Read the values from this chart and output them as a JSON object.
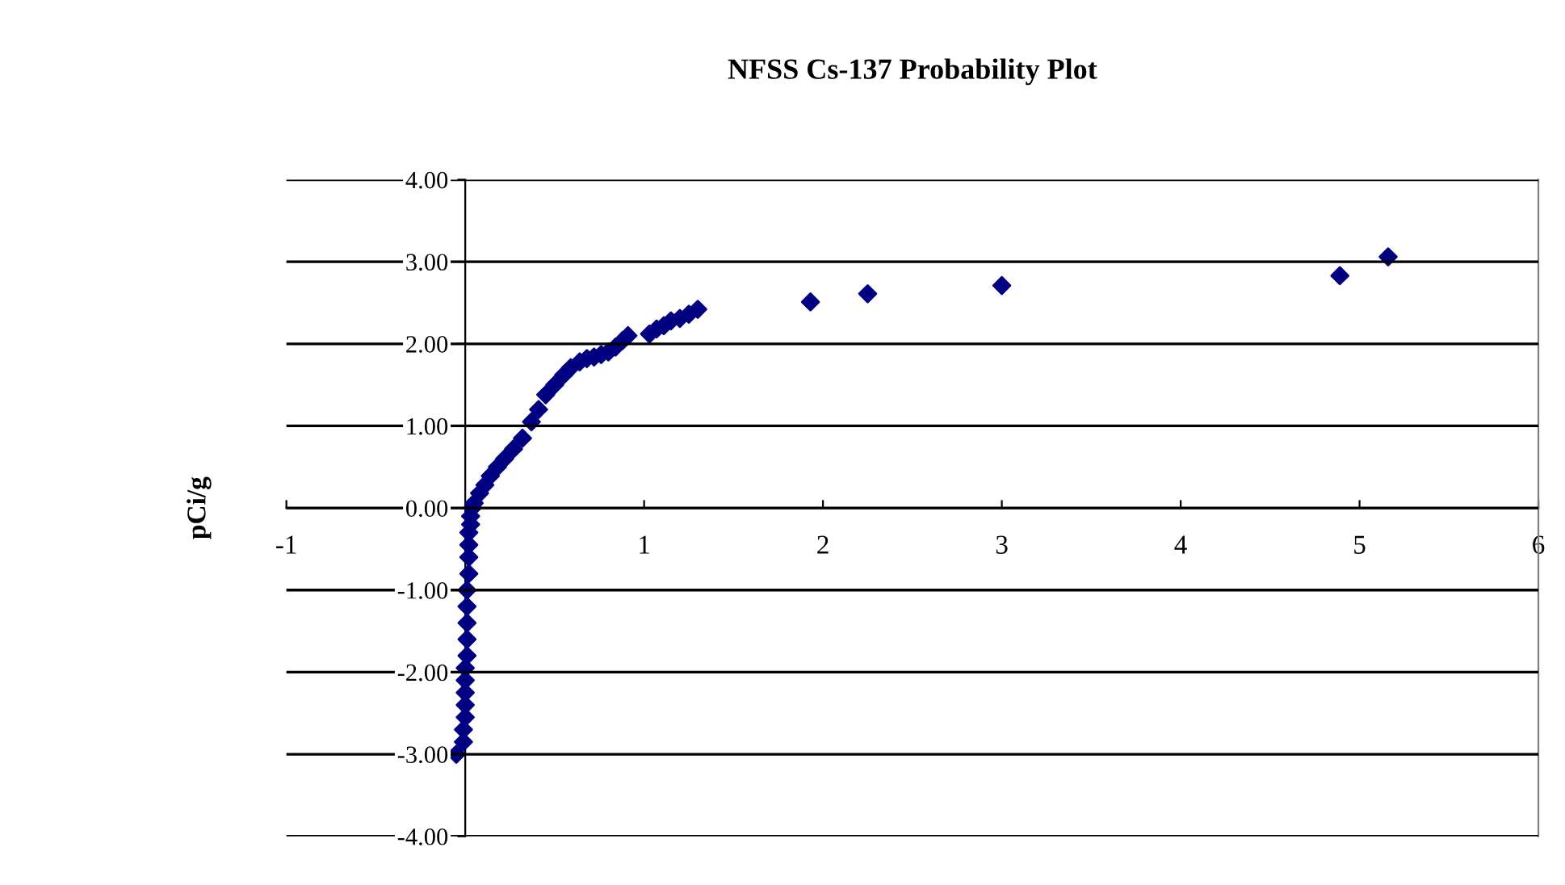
{
  "chart_data": {
    "type": "scatter",
    "title": "NFSS Cs-137 Probability Plot",
    "ylabel": "pCi/g",
    "xlim": [
      -1,
      6
    ],
    "xticks": [
      -1,
      1,
      2,
      3,
      4,
      5,
      6
    ],
    "ylim": [
      -4,
      4
    ],
    "yticks": [
      {
        "value": -4,
        "label": "-4.00"
      },
      {
        "value": -3,
        "label": "-3.00"
      },
      {
        "value": -2,
        "label": "-2.00"
      },
      {
        "value": -1,
        "label": "-1.00"
      },
      {
        "value": 0,
        "label": "0.00"
      },
      {
        "value": 1,
        "label": "1.00"
      },
      {
        "value": 2,
        "label": "2.00"
      },
      {
        "value": 3,
        "label": "3.00"
      },
      {
        "value": 4,
        "label": "4.00"
      }
    ],
    "grid": "y",
    "marker": "diamond",
    "legend": false,
    "series": [
      {
        "color": "#000080",
        "x": [
          -0.05,
          -0.01,
          -0.01,
          0.0,
          0.0,
          0.0,
          0.0,
          0.0,
          0.01,
          0.01,
          0.01,
          0.01,
          0.01,
          0.02,
          0.02,
          0.02,
          0.02,
          0.03,
          0.03,
          0.04,
          0.05,
          0.08,
          0.11,
          0.14,
          0.18,
          0.22,
          0.27,
          0.32,
          0.37,
          0.41,
          0.45,
          0.5,
          0.55,
          0.59,
          0.64,
          0.68,
          0.72,
          0.76,
          0.8,
          0.84,
          0.88,
          0.91,
          1.03,
          1.07,
          1.11,
          1.15,
          1.2,
          1.25,
          1.3,
          1.93,
          2.25,
          3.0,
          4.89,
          5.16
        ],
        "values": [
          -3.0,
          -2.85,
          -2.7,
          -2.55,
          -2.4,
          -2.25,
          -2.1,
          -1.95,
          -1.8,
          -1.6,
          -1.4,
          -1.2,
          -1.0,
          -0.8,
          -0.6,
          -0.45,
          -0.3,
          -0.2,
          -0.1,
          0.0,
          0.06,
          0.18,
          0.28,
          0.39,
          0.5,
          0.6,
          0.72,
          0.85,
          1.05,
          1.2,
          1.38,
          1.5,
          1.62,
          1.71,
          1.78,
          1.82,
          1.84,
          1.87,
          1.9,
          1.96,
          2.04,
          2.1,
          2.12,
          2.18,
          2.22,
          2.28,
          2.31,
          2.36,
          2.42,
          2.51,
          2.61,
          2.71,
          2.83,
          3.06
        ]
      }
    ]
  }
}
